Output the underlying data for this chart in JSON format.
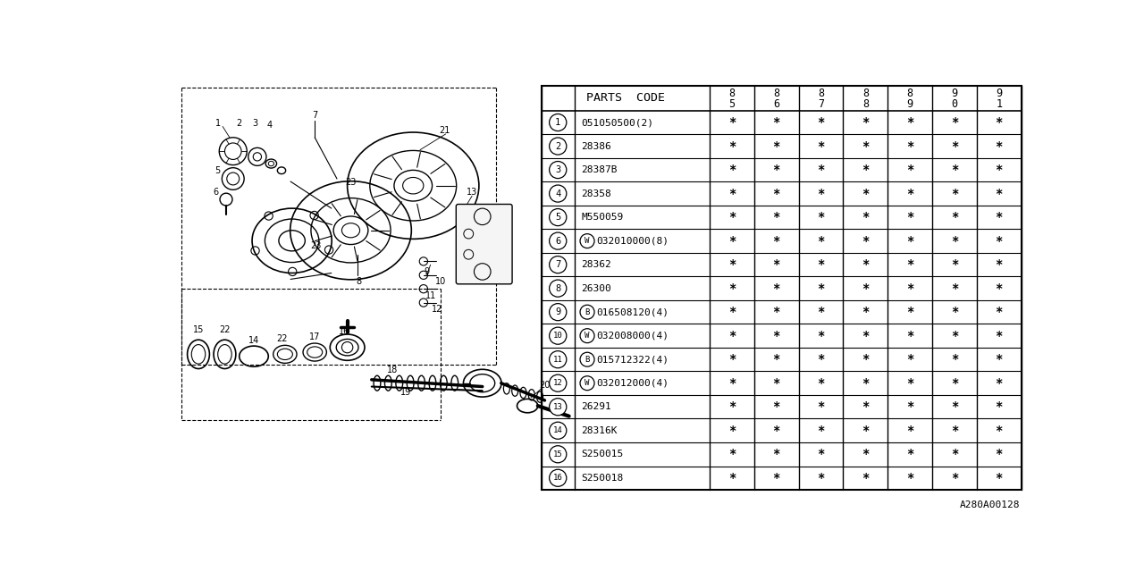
{
  "bg_color": "#ffffff",
  "col_headers_top": [
    "8",
    "8",
    "8",
    "8",
    "8",
    "9",
    "9"
  ],
  "col_headers_bot": [
    "5",
    "6",
    "7",
    "8",
    "9",
    "0",
    "1"
  ],
  "rows": [
    {
      "num": "1",
      "code": "051050500(2)",
      "prefix": "",
      "prefix_letter": ""
    },
    {
      "num": "2",
      "code": "28386",
      "prefix": "",
      "prefix_letter": ""
    },
    {
      "num": "3",
      "code": "28387B",
      "prefix": "",
      "prefix_letter": ""
    },
    {
      "num": "4",
      "code": "28358",
      "prefix": "",
      "prefix_letter": ""
    },
    {
      "num": "5",
      "code": "M550059",
      "prefix": "",
      "prefix_letter": ""
    },
    {
      "num": "6",
      "code": "032010000(8)",
      "prefix": "W",
      "prefix_letter": "W"
    },
    {
      "num": "7",
      "code": "28362",
      "prefix": "",
      "prefix_letter": ""
    },
    {
      "num": "8",
      "code": "26300",
      "prefix": "",
      "prefix_letter": ""
    },
    {
      "num": "9",
      "code": "016508120(4)",
      "prefix": "B",
      "prefix_letter": "B"
    },
    {
      "num": "10",
      "code": "032008000(4)",
      "prefix": "W",
      "prefix_letter": "W"
    },
    {
      "num": "11",
      "code": "015712322(4)",
      "prefix": "B",
      "prefix_letter": "B"
    },
    {
      "num": "12",
      "code": "032012000(4)",
      "prefix": "W",
      "prefix_letter": "W"
    },
    {
      "num": "13",
      "code": "26291",
      "prefix": "",
      "prefix_letter": ""
    },
    {
      "num": "14",
      "code": "28316K",
      "prefix": "",
      "prefix_letter": ""
    },
    {
      "num": "15",
      "code": "S250015",
      "prefix": "",
      "prefix_letter": ""
    },
    {
      "num": "16",
      "code": "S250018",
      "prefix": "",
      "prefix_letter": ""
    }
  ],
  "asterisk": "*",
  "footer": "A280A00128",
  "line_color": "#000000",
  "text_color": "#000000"
}
